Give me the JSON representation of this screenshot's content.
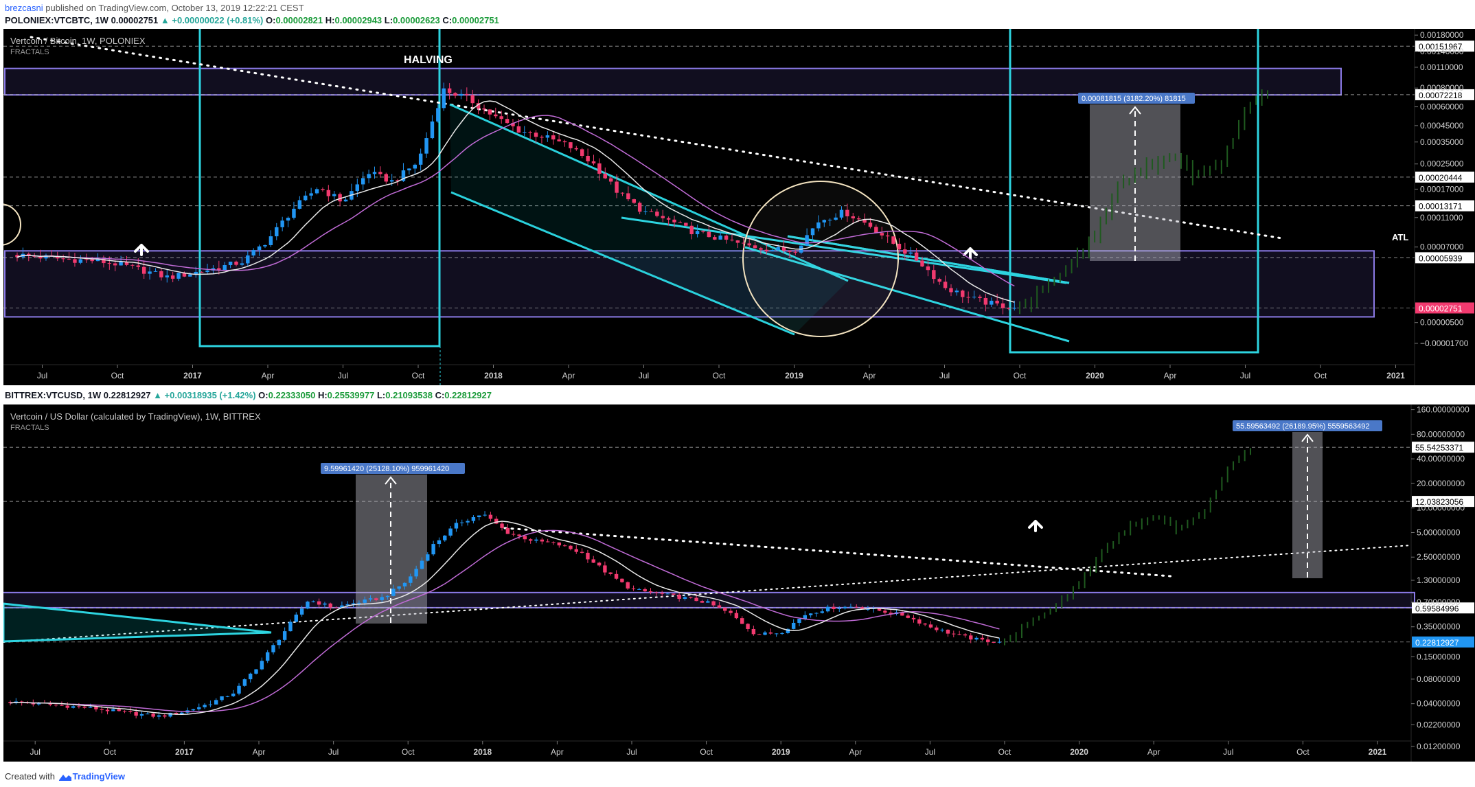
{
  "header": {
    "publisher_user": "brezcasni",
    "publisher_rest": " published on TradingView.com, October 13, 2019 12:22:21 CEST"
  },
  "top_legend": {
    "symbol": "POLONIEX:VTCBTC, 1W",
    "price": "0.00002751",
    "change": "▲ +0.00000022 (+0.81%)",
    "o_label": "O:",
    "o": "0.00002821",
    "h_label": "H:",
    "h": "0.00002943",
    "l_label": "L:",
    "l": "0.00002623",
    "c_label": "C:",
    "c": "0.00002751"
  },
  "bottom_legend": {
    "symbol": "BITTREX:VTCUSD, 1W",
    "price": "0.22812927",
    "change": "▲ +0.00318935 (+1.42%)",
    "o_label": "O:",
    "o": "0.22333050",
    "h_label": "H:",
    "h": "0.25539977",
    "l_label": "L:",
    "l": "0.21093538",
    "c_label": "C:",
    "c": "0.22812927"
  },
  "footer": {
    "created": "Created with",
    "brand": "TradingView"
  },
  "colors": {
    "background": "#000000",
    "up": "#2196f3",
    "down": "#f23a6f",
    "forecast": "#1f5a1f",
    "trendline": "#2dd4e0",
    "zone": "#8c7be8",
    "ma_fast": "#e8e8e8",
    "ma_slow": "#c06bd6",
    "grid_dash": "#bfbfbf"
  },
  "chart_data": [
    {
      "type": "line",
      "title": "Vertcoin / Bitcoin, 1W, POLONIEX",
      "subtitle": "FRACTALS",
      "scale": "log",
      "x_ticks": [
        "Jul",
        "Oct",
        "2017",
        "Apr",
        "Jul",
        "Oct",
        "2018",
        "Apr",
        "Jul",
        "Oct",
        "2019",
        "Apr",
        "Jul",
        "Oct",
        "2020",
        "Apr",
        "Jul",
        "Oct",
        "2021"
      ],
      "y_ticks": [
        "0.00180000",
        "0.00140000",
        "0.00110000",
        "0.00080000",
        "0.00060000",
        "0.00045000",
        "0.00035000",
        "0.00025000",
        "0.00017000",
        "0.00011000",
        "0.00007000",
        "0.00000500",
        "−0.00001700"
      ],
      "price_levels": [
        "0.00151967",
        "0.00072218",
        "0.00020444",
        "0.00013171",
        "0.00005939"
      ],
      "last_price": "0.00002751",
      "annotations": {
        "halving": "HALVING",
        "atl": "ATL",
        "measure": "0.00081815 (3182.20%) 81815"
      },
      "series": [
        {
          "key": "price",
          "x": [
            "2016-06",
            "2016-07",
            "2016-08",
            "2016-09",
            "2016-10",
            "2016-11",
            "2016-12",
            "2017-01",
            "2017-02",
            "2017-03",
            "2017-04",
            "2017-05",
            "2017-06",
            "2017-07",
            "2017-08",
            "2017-09",
            "2017-10",
            "2017-11",
            "2017-12",
            "2018-01",
            "2018-02",
            "2018-03",
            "2018-04",
            "2018-05",
            "2018-06",
            "2018-07",
            "2018-08",
            "2018-09",
            "2018-10",
            "2018-11",
            "2018-12",
            "2019-01",
            "2019-02",
            "2019-03",
            "2019-04",
            "2019-05",
            "2019-06",
            "2019-07",
            "2019-08",
            "2019-09",
            "2019-10"
          ],
          "y": [
            6.2e-05,
            6e-05,
            5.8e-05,
            5.7e-05,
            5.4e-05,
            4.9e-05,
            4.4e-05,
            4.7e-05,
            5.1e-05,
            5.6e-05,
            7.8e-05,
            0.000125,
            0.000175,
            0.00014,
            0.00022,
            0.00019,
            0.00026,
            0.00078,
            0.00068,
            0.00052,
            0.00042,
            0.00038,
            0.00033,
            0.00025,
            0.00016,
            0.00012,
            0.000105,
            8.8e-05,
            8e-05,
            7.2e-05,
            6.8e-05,
            6.6e-05,
            0.000105,
            0.00012,
            9.8e-05,
            7.3e-05,
            5.6e-05,
            3.8e-05,
            3.2e-05,
            2.9e-05,
            2.75e-05
          ]
        },
        {
          "key": "forecast",
          "x": [
            "2019-10",
            "2019-11",
            "2019-12",
            "2020-01",
            "2020-02",
            "2020-03",
            "2020-04",
            "2020-05",
            "2020-06",
            "2020-07",
            "2020-08"
          ],
          "y": [
            2.75e-05,
            3.8e-05,
            5.2e-05,
            8.5e-05,
            0.00018,
            0.00024,
            0.00027,
            0.00021,
            0.00025,
            0.00055,
            0.00083
          ]
        }
      ]
    },
    {
      "type": "line",
      "title": "Vertcoin / US Dollar (calculated by TradingView), 1W, BITTREX",
      "subtitle": "FRACTALS",
      "scale": "log",
      "x_ticks": [
        "Jul",
        "Oct",
        "2017",
        "Apr",
        "Jul",
        "Oct",
        "2018",
        "Apr",
        "Jul",
        "Oct",
        "2019",
        "Apr",
        "Jul",
        "Oct",
        "2020",
        "Apr",
        "Jul",
        "Oct",
        "2021"
      ],
      "y_ticks": [
        "160.00000000",
        "80.00000000",
        "40.00000000",
        "20.00000000",
        "10.00000000",
        "5.00000000",
        "2.50000000",
        "1.30000000",
        "0.70000000",
        "0.35000000",
        "0.15000000",
        "0.08000000",
        "0.04000000",
        "0.02200000",
        "0.01200000"
      ],
      "price_levels": [
        "55.54253371",
        "12.03823056",
        "0.59584996"
      ],
      "last_price": "0.22812927",
      "annotations": {
        "measure": "9.59961420 (25128.10%) 959961420",
        "measure_forecast": "55.59563492 (26189.95%) 5559563492"
      },
      "series": [
        {
          "key": "price",
          "x": [
            "2016-06",
            "2016-07",
            "2016-08",
            "2016-09",
            "2016-10",
            "2016-11",
            "2016-12",
            "2017-01",
            "2017-02",
            "2017-03",
            "2017-04",
            "2017-05",
            "2017-06",
            "2017-07",
            "2017-08",
            "2017-09",
            "2017-10",
            "2017-11",
            "2017-12",
            "2018-01",
            "2018-02",
            "2018-03",
            "2018-04",
            "2018-05",
            "2018-06",
            "2018-07",
            "2018-08",
            "2018-09",
            "2018-10",
            "2018-11",
            "2018-12",
            "2019-01",
            "2019-02",
            "2019-03",
            "2019-04",
            "2019-05",
            "2019-06",
            "2019-07",
            "2019-08",
            "2019-09",
            "2019-10"
          ],
          "y": [
            0.042,
            0.04,
            0.038,
            0.036,
            0.033,
            0.03,
            0.028,
            0.032,
            0.04,
            0.055,
            0.12,
            0.3,
            0.75,
            0.6,
            0.7,
            0.8,
            1.3,
            3.5,
            6.5,
            8.5,
            5.0,
            4.0,
            3.6,
            2.8,
            1.6,
            1.0,
            0.9,
            0.8,
            0.7,
            0.5,
            0.28,
            0.3,
            0.5,
            0.6,
            0.62,
            0.55,
            0.48,
            0.35,
            0.28,
            0.24,
            0.228
          ]
        },
        {
          "key": "forecast",
          "x": [
            "2019-10",
            "2019-11",
            "2019-12",
            "2020-01",
            "2020-02",
            "2020-03",
            "2020-04",
            "2020-05",
            "2020-06",
            "2020-07",
            "2020-08"
          ],
          "y": [
            0.228,
            0.4,
            0.6,
            1.2,
            3.0,
            6.0,
            7.5,
            5.5,
            9.0,
            30.0,
            60.0
          ]
        }
      ]
    }
  ]
}
